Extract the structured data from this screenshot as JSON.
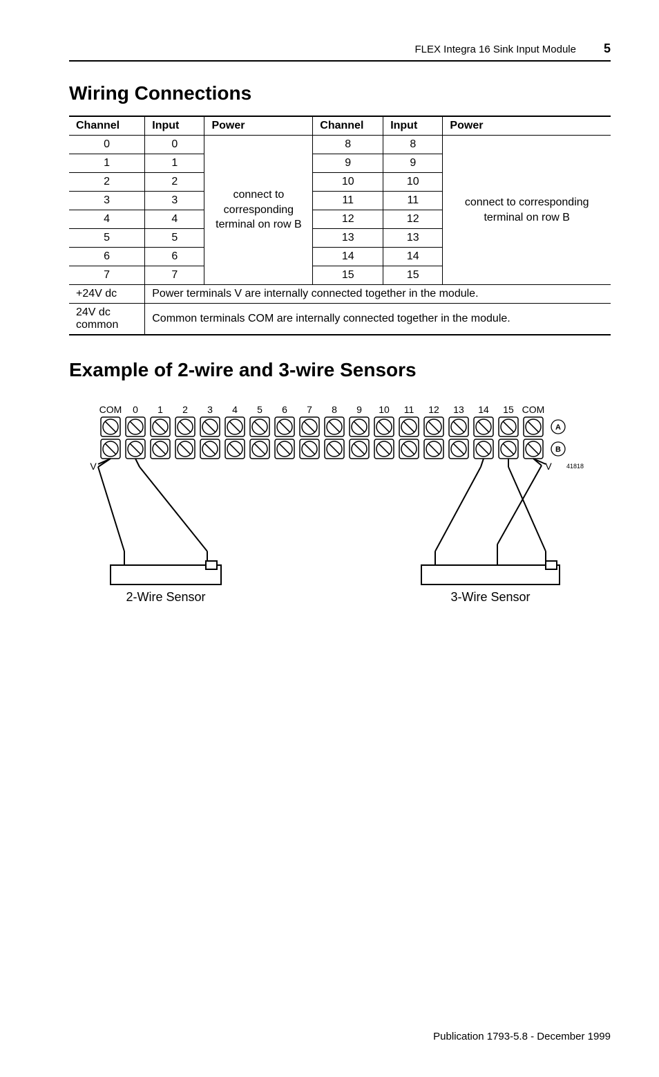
{
  "header": {
    "doc_title": "FLEX Integra 16 Sink Input Module",
    "page_number": "5"
  },
  "sections": {
    "wiring_title": "Wiring Connections",
    "example_title": "Example of 2-wire and 3-wire Sensors"
  },
  "table": {
    "headers": {
      "channel": "Channel",
      "input": "Input",
      "power": "Power"
    },
    "power_left": "connect to corresponding terminal on row B",
    "power_right": "connect to corresponding terminal on row B",
    "rows_left": [
      {
        "ch": "0",
        "in": "0"
      },
      {
        "ch": "1",
        "in": "1"
      },
      {
        "ch": "2",
        "in": "2"
      },
      {
        "ch": "3",
        "in": "3"
      },
      {
        "ch": "4",
        "in": "4"
      },
      {
        "ch": "5",
        "in": "5"
      },
      {
        "ch": "6",
        "in": "6"
      },
      {
        "ch": "7",
        "in": "7"
      }
    ],
    "rows_right": [
      {
        "ch": "8",
        "in": "8"
      },
      {
        "ch": "9",
        "in": "9"
      },
      {
        "ch": "10",
        "in": "10"
      },
      {
        "ch": "11",
        "in": "11"
      },
      {
        "ch": "12",
        "in": "12"
      },
      {
        "ch": "13",
        "in": "13"
      },
      {
        "ch": "14",
        "in": "14"
      },
      {
        "ch": "15",
        "in": "15"
      }
    ],
    "footer_rows": [
      {
        "label": "+24V dc",
        "text": "Power terminals V are internally connected together in the module."
      },
      {
        "label": "24V dc common",
        "text": "Common terminals COM are internally connected together in the module."
      }
    ]
  },
  "diagram": {
    "terminal_count": 18,
    "left_end_label": "COM",
    "right_end_label": "COM",
    "numeric_labels": [
      "0",
      "1",
      "2",
      "3",
      "4",
      "5",
      "6",
      "7",
      "8",
      "9",
      "10",
      "11",
      "12",
      "13",
      "14",
      "15"
    ],
    "row_a_label": "A",
    "row_b_label": "B",
    "v_label": "V",
    "ref_number": "41818",
    "sensor_left": "2-Wire Sensor",
    "sensor_right": "3-Wire Sensor",
    "colors": {
      "stroke": "#000000",
      "fill_bg": "#ffffff"
    }
  },
  "footer": {
    "pub": "Publication 1793-5.8 - December 1999"
  }
}
